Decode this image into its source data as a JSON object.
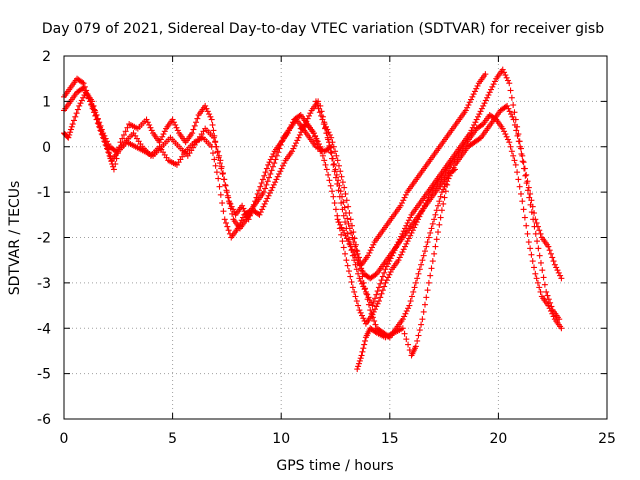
{
  "chart_data": {
    "type": "scatter",
    "title": "Day 079 of 2021, Sidereal Day-to-day VTEC variation (SDTVAR) for receiver gisb",
    "xlabel": "GPS time / hours",
    "ylabel": "SDTVAR / TECUs",
    "xlim": [
      0,
      25
    ],
    "ylim": [
      -6,
      2
    ],
    "xticks": [
      0,
      5,
      10,
      15,
      20,
      25
    ],
    "yticks": [
      -6,
      -5,
      -4,
      -3,
      -2,
      -1,
      0,
      1,
      2
    ],
    "grid": true,
    "marker": "plus",
    "color": "#ff0000",
    "series": [
      {
        "x": [
          0,
          0.3,
          0.6,
          0.9,
          1.2,
          1.5,
          1.8,
          2.1,
          2.3,
          2.6,
          3.0,
          3.4,
          3.8,
          4.1,
          4.4,
          4.7,
          5.0,
          5.3,
          5.6,
          5.9,
          6.2,
          6.5,
          6.8,
          7.0,
          7.3,
          7.6,
          7.9,
          8.2,
          8.5,
          8.8,
          9.1,
          9.4,
          9.7,
          10.0,
          10.3,
          10.6,
          10.9,
          11.2,
          11.5,
          11.8
        ],
        "y": [
          1.1,
          1.3,
          1.5,
          1.4,
          1.0,
          0.6,
          0.2,
          -0.2,
          -0.5,
          0.1,
          0.5,
          0.4,
          0.6,
          0.3,
          0.1,
          0.4,
          0.6,
          0.3,
          0.1,
          0.3,
          0.7,
          0.9,
          0.6,
          0.0,
          -0.6,
          -1.2,
          -1.5,
          -1.3,
          -1.6,
          -1.2,
          -0.8,
          -0.4,
          -0.1,
          0.1,
          0.3,
          0.6,
          0.7,
          0.5,
          0.3,
          -0.1
        ]
      },
      {
        "x": [
          0,
          0.3,
          0.6,
          0.9,
          1.2,
          1.5,
          1.8,
          2.1,
          2.4,
          2.8,
          3.2,
          3.6,
          4.0,
          4.4,
          4.8,
          5.2,
          5.6,
          6.0,
          6.4,
          6.8,
          7.1,
          7.4,
          7.7,
          8.0,
          8.3,
          8.6,
          8.9,
          9.2,
          9.5,
          9.8,
          10.1,
          10.4,
          10.7,
          11.0,
          11.3,
          11.6,
          12.0,
          12.3
        ],
        "y": [
          0.8,
          1.0,
          1.2,
          1.3,
          1.0,
          0.7,
          0.3,
          0.0,
          -0.1,
          0.1,
          0.3,
          0.0,
          -0.2,
          0.0,
          -0.3,
          -0.4,
          -0.1,
          0.1,
          0.2,
          0.0,
          -0.7,
          -1.6,
          -2.0,
          -1.8,
          -1.5,
          -1.4,
          -1.2,
          -1.0,
          -0.6,
          -0.2,
          0.2,
          0.4,
          0.6,
          0.4,
          0.2,
          0.0,
          -0.1,
          0.0
        ]
      },
      {
        "x": [
          0,
          0.2,
          0.4,
          0.7,
          1.0,
          1.3,
          1.6,
          1.9,
          2.2,
          2.5,
          2.9,
          3.3,
          3.7,
          4.1,
          4.5,
          4.9,
          5.3,
          5.7,
          6.1,
          6.5,
          6.9,
          7.2,
          7.5,
          7.8,
          8.1,
          8.4,
          8.7,
          9.0,
          9.3,
          9.6,
          9.9,
          10.2,
          10.5,
          10.8,
          11.1,
          11.4,
          11.7
        ],
        "y": [
          0.3,
          0.2,
          0.5,
          0.9,
          1.2,
          1.0,
          0.5,
          0.1,
          -0.3,
          -0.1,
          0.1,
          0.0,
          -0.1,
          -0.2,
          0.0,
          0.2,
          0.0,
          -0.2,
          0.1,
          0.4,
          0.2,
          -0.3,
          -1.0,
          -1.6,
          -1.8,
          -1.6,
          -1.4,
          -1.5,
          -1.2,
          -0.9,
          -0.6,
          -0.3,
          -0.1,
          0.2,
          0.5,
          0.8,
          1.0
        ]
      },
      {
        "x": [
          11.6,
          11.9,
          12.2,
          12.5,
          12.8,
          13.1,
          13.4,
          13.7,
          14.0,
          14.3,
          14.6,
          14.9,
          15.2,
          15.5,
          15.8,
          16.1,
          16.4,
          16.7,
          17.0,
          17.3,
          17.6,
          17.9,
          18.2,
          18.5,
          18.8,
          19.1,
          19.4
        ],
        "y": [
          1.0,
          0.6,
          0.1,
          -0.5,
          -1.1,
          -1.7,
          -2.2,
          -2.6,
          -2.4,
          -2.1,
          -1.9,
          -1.7,
          -1.5,
          -1.3,
          -1.0,
          -0.8,
          -0.6,
          -0.4,
          -0.2,
          0.0,
          0.2,
          0.4,
          0.6,
          0.8,
          1.1,
          1.4,
          1.6
        ]
      },
      {
        "x": [
          11.8,
          12.1,
          12.4,
          12.7,
          13.0,
          13.3,
          13.6,
          13.9,
          14.2,
          14.5,
          14.8,
          15.1,
          15.4,
          15.7,
          16.0,
          16.3,
          16.6,
          16.9,
          17.2,
          17.5,
          17.8,
          18.1,
          18.4,
          18.7,
          19.0,
          19.3,
          19.6,
          19.9,
          20.2,
          20.5,
          20.8,
          21.1,
          21.4,
          21.7,
          22.0,
          22.3,
          22.6,
          22.9
        ],
        "y": [
          0.9,
          0.3,
          -0.4,
          -1.1,
          -1.8,
          -2.4,
          -2.9,
          -3.2,
          -3.5,
          -3.1,
          -2.7,
          -2.4,
          -2.1,
          -1.8,
          -1.5,
          -1.3,
          -1.1,
          -0.9,
          -0.7,
          -0.5,
          -0.3,
          -0.1,
          0.1,
          0.3,
          0.6,
          0.9,
          1.2,
          1.5,
          1.7,
          1.4,
          0.6,
          -0.2,
          -0.9,
          -1.6,
          -2.0,
          -2.2,
          -2.6,
          -2.9
        ]
      },
      {
        "x": [
          10.9,
          11.2,
          11.5,
          11.8,
          12.1,
          12.4,
          12.7,
          13.0,
          13.3,
          13.6,
          13.9,
          14.2,
          14.5,
          14.8,
          15.1,
          15.4,
          15.7,
          16.0,
          16.3,
          16.6,
          16.9,
          17.2,
          17.5,
          17.8,
          18.1,
          18.4,
          18.7,
          19.0,
          19.3,
          19.6,
          19.9,
          20.2,
          20.5,
          20.8,
          21.1,
          21.4,
          21.7,
          22.0,
          22.3,
          22.6,
          22.9
        ],
        "y": [
          0.4,
          0.5,
          0.3,
          0.0,
          -0.5,
          -1.1,
          -1.8,
          -2.5,
          -3.1,
          -3.6,
          -3.9,
          -3.7,
          -3.4,
          -3.0,
          -2.7,
          -2.5,
          -2.2,
          -1.9,
          -1.6,
          -1.3,
          -1.0,
          -0.8,
          -0.6,
          -0.4,
          -0.2,
          0.0,
          0.2,
          0.4,
          0.5,
          0.7,
          0.6,
          0.4,
          0.1,
          -0.4,
          -1.2,
          -2.1,
          -2.8,
          -3.3,
          -3.5,
          -3.8,
          -4.0
        ]
      },
      {
        "x": [
          12.0,
          12.3,
          12.6,
          12.9,
          13.2,
          13.5,
          13.8,
          14.1,
          14.4,
          14.7,
          15.0,
          15.3,
          15.6,
          15.9,
          16.2,
          16.5,
          16.8,
          17.1,
          17.4,
          17.7,
          18.0,
          18.3,
          18.6,
          18.9,
          19.2,
          19.5,
          19.8,
          20.1,
          20.4,
          20.7,
          21.0,
          21.3,
          21.6,
          21.9,
          22.2,
          22.5,
          22.8
        ],
        "y": [
          0.5,
          0.2,
          -0.3,
          -0.9,
          -1.6,
          -2.3,
          -3.0,
          -3.6,
          -4.0,
          -4.1,
          -4.2,
          -4.0,
          -3.8,
          -3.5,
          -3.0,
          -2.5,
          -2.0,
          -1.5,
          -1.0,
          -0.7,
          -0.4,
          -0.2,
          0.0,
          0.1,
          0.2,
          0.4,
          0.6,
          0.8,
          0.9,
          0.6,
          0.0,
          -0.8,
          -1.6,
          -2.4,
          -3.2,
          -3.6,
          -3.8
        ]
      },
      {
        "x": [
          13.5,
          13.7,
          13.9,
          14.1,
          14.4,
          14.8,
          15.2,
          15.6,
          16.0,
          16.2,
          16.5,
          16.8,
          17.1,
          17.4,
          17.7
        ],
        "y": [
          -4.9,
          -4.6,
          -4.2,
          -4.0,
          -4.1,
          -4.2,
          -4.1,
          -4.0,
          -4.6,
          -4.4,
          -3.8,
          -3.0,
          -2.2,
          -1.4,
          -0.7
        ]
      },
      {
        "x": [
          12.6,
          12.9,
          13.2,
          13.5,
          13.8,
          14.1,
          14.4,
          14.7,
          15.0,
          15.3,
          15.6,
          15.9,
          16.2,
          16.5,
          16.8,
          17.1,
          17.4,
          17.7,
          18.0
        ],
        "y": [
          -1.6,
          -1.9,
          -2.2,
          -2.5,
          -2.8,
          -2.9,
          -2.8,
          -2.6,
          -2.4,
          -2.2,
          -2.0,
          -1.8,
          -1.6,
          -1.4,
          -1.2,
          -1.0,
          -0.8,
          -0.6,
          -0.5
        ]
      }
    ]
  }
}
